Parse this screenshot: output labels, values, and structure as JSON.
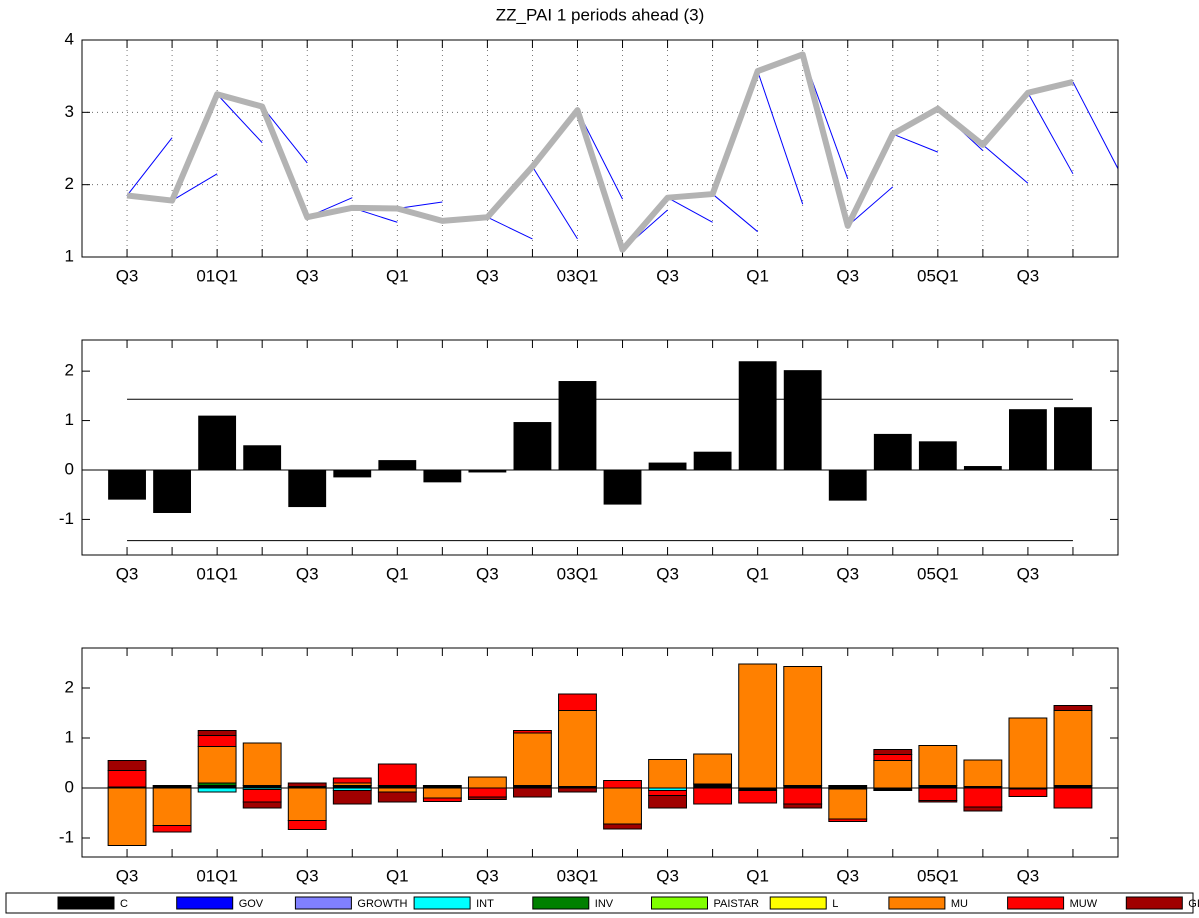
{
  "chart_data": [
    {
      "type": "line",
      "title": "ZZ_PAI 1 periods ahead (3)",
      "categories": [
        "Q3",
        null,
        "01Q1",
        null,
        "Q3",
        null,
        "Q1",
        null,
        "Q3",
        null,
        "03Q1",
        null,
        "Q3",
        null,
        "Q1",
        null,
        "Q3",
        null,
        "05Q1",
        null,
        "Q3",
        null
      ],
      "series": [
        {
          "color": "#b3b3b3",
          "values": [
            1.85,
            1.78,
            3.25,
            3.08,
            1.55,
            1.68,
            1.67,
            1.5,
            1.55,
            2.25,
            3.03,
            1.1,
            1.82,
            1.87,
            3.57,
            3.8,
            1.43,
            2.7,
            3.05,
            2.55,
            3.27,
            3.42
          ]
        },
        {
          "color": "#0000ff",
          "values": [
            2.65,
            2.15,
            2.58,
            2.3,
            1.82,
            1.48,
            1.76,
            1.53,
            1.25,
            1.25,
            1.8,
            1.65,
            1.48,
            1.35,
            1.73,
            2.08,
            1.97,
            2.45,
            2.47,
            2.02,
            2.15,
            2.22
          ]
        }
      ],
      "ylim": [
        1,
        4
      ],
      "yticks": [
        1,
        2,
        3,
        4
      ],
      "grid": true
    },
    {
      "type": "bar",
      "color": "#000000",
      "categories": [
        "Q3",
        null,
        "01Q1",
        null,
        "Q3",
        null,
        "Q1",
        null,
        "Q3",
        null,
        "03Q1",
        null,
        "Q3",
        null,
        "Q1",
        null,
        "Q3",
        null,
        "05Q1",
        null,
        "Q3",
        null
      ],
      "values": [
        -0.6,
        -0.87,
        1.1,
        0.5,
        -0.75,
        -0.15,
        0.2,
        -0.25,
        -0.05,
        0.97,
        1.8,
        -0.7,
        0.15,
        0.37,
        2.2,
        2.02,
        -0.62,
        0.73,
        0.58,
        0.08,
        1.23,
        1.27
      ],
      "hlines": [
        1.43,
        -1.43
      ],
      "ylim": [
        -1.72,
        2.63
      ],
      "yticks": [
        -1,
        0,
        1,
        2
      ],
      "grid": false
    },
    {
      "type": "stacked_bar",
      "legend": "bottom",
      "categories": [
        "Q3",
        null,
        "01Q1",
        null,
        "Q3",
        null,
        "Q1",
        null,
        "Q3",
        null,
        "03Q1",
        null,
        "Q3",
        null,
        "Q1",
        null,
        "Q3",
        null,
        "05Q1",
        null,
        "Q3",
        null
      ],
      "series": [
        {
          "name": "C",
          "color": "#000000",
          "values": [
            0.02,
            0.05,
            0.05,
            0.05,
            0.03,
            0.05,
            0.05,
            0.05,
            0,
            0.05,
            0.03,
            0,
            0,
            0.08,
            -0.05,
            0.05,
            0.05,
            -0.05,
            0.05,
            0.03,
            -0.02,
            0.05
          ]
        },
        {
          "name": "GOV",
          "color": "#0000ff",
          "values": [
            0,
            0,
            0,
            0,
            0,
            0,
            0,
            0,
            0,
            0,
            0,
            0,
            0,
            0,
            0,
            0,
            0,
            0,
            0,
            0,
            0,
            0
          ]
        },
        {
          "name": "GROWTH",
          "color": "#8080ff",
          "values": [
            0,
            0,
            0,
            0,
            0,
            0,
            0,
            0,
            0,
            0,
            0,
            0,
            0,
            0,
            0,
            0,
            0,
            0,
            0,
            0,
            0,
            0
          ]
        },
        {
          "name": "INT",
          "color": "#00ffff",
          "values": [
            0,
            0,
            -0.08,
            -0.03,
            0,
            -0.05,
            0,
            0,
            0,
            0,
            0,
            0,
            -0.05,
            0,
            0,
            0,
            -0.02,
            0,
            0,
            0,
            0,
            0
          ]
        },
        {
          "name": "INV",
          "color": "#008000",
          "values": [
            0,
            0,
            0.05,
            0,
            0,
            0,
            0,
            0,
            0,
            0,
            0,
            0,
            0,
            0,
            0,
            0,
            0,
            0,
            0,
            0,
            0,
            0
          ]
        },
        {
          "name": "PAISTAR",
          "color": "#80ff00",
          "values": [
            0,
            0,
            0,
            0,
            0,
            0,
            0,
            0,
            0,
            0,
            0,
            0,
            0,
            0,
            0,
            0,
            0,
            0,
            0,
            0,
            0,
            0
          ]
        },
        {
          "name": "L",
          "color": "#ffff00",
          "values": [
            0,
            0,
            0,
            0,
            0,
            0,
            0,
            0,
            0,
            0,
            0,
            0,
            0,
            0,
            0,
            0,
            0,
            0,
            0,
            0,
            0,
            0
          ]
        },
        {
          "name": "MU",
          "color": "#ff8000",
          "values": [
            -1.15,
            -0.75,
            0.73,
            0.85,
            -0.65,
            0.05,
            -0.08,
            -0.2,
            0.22,
            1.05,
            1.52,
            -0.72,
            0.57,
            0.6,
            2.48,
            2.38,
            -0.6,
            0.55,
            0.8,
            0.53,
            1.4,
            1.5
          ]
        },
        {
          "name": "MUW",
          "color": "#ff0000",
          "values": [
            0.33,
            -0.13,
            0.22,
            -0.25,
            -0.18,
            0.1,
            0.43,
            -0.07,
            -0.18,
            0.05,
            0.33,
            0.15,
            -0.1,
            -0.32,
            -0.25,
            -0.32,
            -0.05,
            0.12,
            -0.25,
            -0.38,
            -0.15,
            -0.4
          ]
        },
        {
          "name": "GIID",
          "color": "#a00000",
          "values": [
            0.2,
            0,
            0.1,
            -0.12,
            0.07,
            -0.27,
            -0.2,
            0,
            -0.05,
            -0.18,
            -0.08,
            -0.1,
            -0.25,
            0,
            0,
            -0.08,
            0,
            0.1,
            -0.03,
            -0.08,
            0,
            0.1
          ]
        }
      ],
      "ylim": [
        -1.38,
        2.8
      ],
      "yticks": [
        -1,
        0,
        1,
        2
      ],
      "grid": false
    }
  ]
}
